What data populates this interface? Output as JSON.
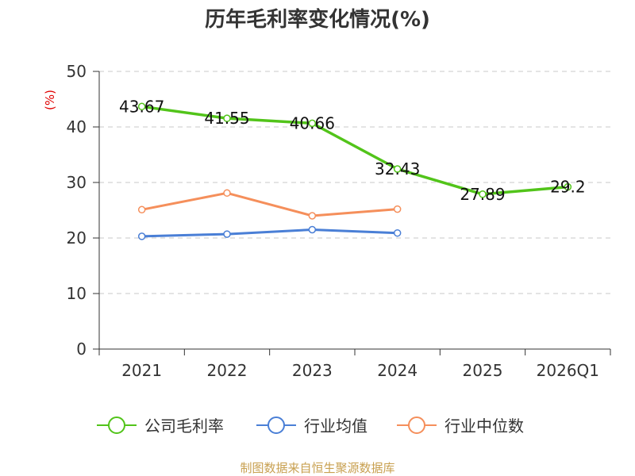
{
  "chart_data": {
    "type": "line",
    "title": "历年毛利率变化情况(%)",
    "ylabel": "(%)",
    "xlabel": "",
    "ylim": [
      0,
      50
    ],
    "yticks": [
      0,
      10,
      20,
      30,
      40,
      50
    ],
    "categories": [
      "2021",
      "2022",
      "2023",
      "2024",
      "2025",
      "2026Q1"
    ],
    "series": [
      {
        "name": "公司毛利率",
        "color": "#52c41a",
        "values": [
          43.67,
          41.55,
          40.66,
          32.43,
          27.89,
          29.2
        ],
        "labels": [
          "43.67",
          "41.55",
          "40.66",
          "32.43",
          "27.89",
          "29.2"
        ]
      },
      {
        "name": "行业均值",
        "color": "#4a7fd6",
        "values": [
          20.3,
          20.7,
          21.5,
          20.9,
          null,
          null
        ]
      },
      {
        "name": "行业中位数",
        "color": "#f58f5b",
        "values": [
          25.1,
          28.1,
          24.0,
          25.2,
          null,
          null
        ]
      }
    ],
    "grid": true,
    "legend": "bottom"
  },
  "source_text": "制图数据来自恒生聚源数据库"
}
